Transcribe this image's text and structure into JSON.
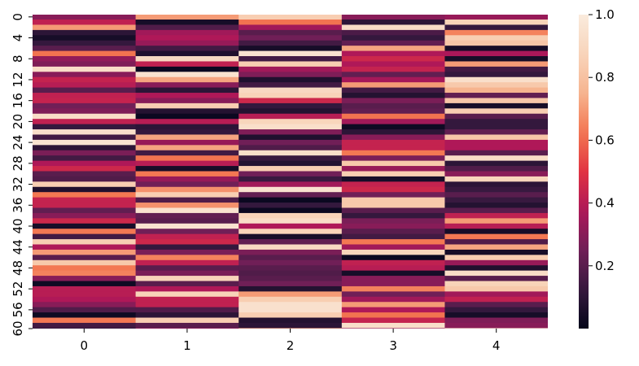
{
  "chart_data": {
    "type": "heatmap",
    "title": "",
    "xlabel": "",
    "ylabel": "",
    "x_categories": [
      "0",
      "1",
      "2",
      "3",
      "4"
    ],
    "y_tick_labels": [
      "0",
      "4",
      "8",
      "12",
      "16",
      "20",
      "24",
      "28",
      "32",
      "36",
      "40",
      "44",
      "48",
      "52",
      "56",
      "60"
    ],
    "y_tick_rows": [
      0,
      4,
      8,
      12,
      16,
      20,
      24,
      28,
      32,
      36,
      40,
      44,
      48,
      52,
      56,
      60
    ],
    "colormap": "rocket",
    "vmin": 0.0,
    "vmax": 1.0,
    "colorbar_ticks": [
      0.2,
      0.4,
      0.6,
      0.8,
      1.0
    ],
    "colorbar_tick_labels": [
      "0.2",
      "0.4",
      "0.6",
      "0.8",
      "1.0"
    ],
    "values": [
      [
        0.3,
        0.7,
        0.85,
        0.3,
        0.33
      ],
      [
        0.42,
        0.05,
        0.62,
        0.1,
        0.87
      ],
      [
        0.7,
        0.18,
        0.35,
        0.92,
        0.12
      ],
      [
        0.1,
        0.35,
        0.2,
        0.17,
        0.65
      ],
      [
        0.05,
        0.38,
        0.25,
        0.12,
        0.85
      ],
      [
        0.12,
        0.33,
        0.15,
        0.22,
        0.82
      ],
      [
        0.2,
        0.15,
        0.05,
        0.72,
        0.05
      ],
      [
        0.62,
        0.07,
        0.95,
        0.38,
        0.37
      ],
      [
        0.32,
        0.9,
        0.15,
        0.45,
        0.05
      ],
      [
        0.28,
        0.42,
        0.85,
        0.38,
        0.7
      ],
      [
        0.92,
        0.02,
        0.35,
        0.43,
        0.15
      ],
      [
        0.3,
        0.95,
        0.28,
        0.22,
        0.12
      ],
      [
        0.43,
        0.72,
        0.07,
        0.36,
        0.93
      ],
      [
        0.4,
        0.3,
        0.15,
        0.7,
        0.83
      ],
      [
        0.2,
        0.1,
        0.9,
        0.15,
        0.75
      ],
      [
        0.42,
        0.38,
        0.87,
        0.08,
        0.22
      ],
      [
        0.43,
        0.3,
        0.45,
        0.27,
        0.82
      ],
      [
        0.25,
        0.85,
        0.12,
        0.2,
        0.05
      ],
      [
        0.28,
        0.08,
        0.08,
        0.22,
        0.85
      ],
      [
        0.92,
        0.02,
        0.4,
        0.62,
        0.2
      ],
      [
        0.42,
        0.4,
        0.88,
        0.35,
        0.12
      ],
      [
        0.12,
        0.1,
        0.93,
        0.03,
        0.12
      ],
      [
        0.93,
        0.12,
        0.28,
        0.1,
        0.22
      ],
      [
        0.15,
        0.72,
        0.07,
        0.3,
        0.82
      ],
      [
        0.96,
        0.33,
        0.25,
        0.43,
        0.38
      ],
      [
        0.1,
        0.72,
        0.18,
        0.43,
        0.38
      ],
      [
        0.27,
        0.15,
        0.93,
        0.63,
        0.2
      ],
      [
        0.15,
        0.62,
        0.13,
        0.27,
        0.92
      ],
      [
        0.38,
        0.4,
        0.08,
        0.83,
        0.1
      ],
      [
        0.45,
        0.05,
        0.85,
        0.33,
        0.18
      ],
      [
        0.2,
        0.63,
        0.25,
        0.85,
        0.3
      ],
      [
        0.18,
        0.33,
        0.13,
        0.05,
        0.88
      ],
      [
        0.85,
        0.25,
        0.35,
        0.43,
        0.1
      ],
      [
        0.07,
        0.68,
        0.95,
        0.45,
        0.13
      ],
      [
        0.63,
        0.85,
        0.22,
        0.25,
        0.2
      ],
      [
        0.43,
        0.18,
        0.02,
        0.83,
        0.13
      ],
      [
        0.43,
        0.68,
        0.12,
        0.83,
        0.08
      ],
      [
        0.22,
        0.95,
        0.02,
        0.2,
        0.2
      ],
      [
        0.3,
        0.22,
        0.87,
        0.12,
        0.42
      ],
      [
        0.45,
        0.2,
        0.92,
        0.27,
        0.7
      ],
      [
        0.05,
        0.95,
        0.38,
        0.3,
        0.4
      ],
      [
        0.63,
        0.25,
        0.87,
        0.2,
        0.05
      ],
      [
        0.15,
        0.42,
        0.05,
        0.15,
        0.63
      ],
      [
        0.85,
        0.45,
        0.22,
        0.63,
        0.18
      ],
      [
        0.38,
        0.12,
        0.9,
        0.35,
        0.72
      ],
      [
        0.7,
        0.27,
        0.27,
        0.88,
        0.05
      ],
      [
        0.2,
        0.65,
        0.2,
        0.02,
        0.85
      ],
      [
        0.83,
        0.42,
        0.25,
        0.42,
        0.33
      ],
      [
        0.63,
        0.2,
        0.2,
        0.4,
        0.07
      ],
      [
        0.65,
        0.27,
        0.18,
        0.05,
        0.92
      ],
      [
        0.3,
        0.87,
        0.2,
        0.3,
        0.2
      ],
      [
        0.03,
        0.2,
        0.25,
        0.3,
        0.87
      ],
      [
        0.4,
        0.38,
        0.08,
        0.65,
        0.83
      ],
      [
        0.4,
        0.87,
        0.7,
        0.25,
        0.35
      ],
      [
        0.38,
        0.42,
        0.85,
        0.35,
        0.42
      ],
      [
        0.3,
        0.42,
        0.94,
        0.7,
        0.2
      ],
      [
        0.18,
        0.18,
        0.94,
        0.38,
        0.12
      ],
      [
        0.03,
        0.1,
        0.85,
        0.62,
        0.05
      ],
      [
        0.63,
        0.85,
        0.08,
        0.43,
        0.28
      ],
      [
        0.15,
        0.2,
        0.1,
        0.93,
        0.3
      ],
      [
        0.1,
        0.33,
        0.7,
        0.32,
        0.92
      ]
    ]
  }
}
